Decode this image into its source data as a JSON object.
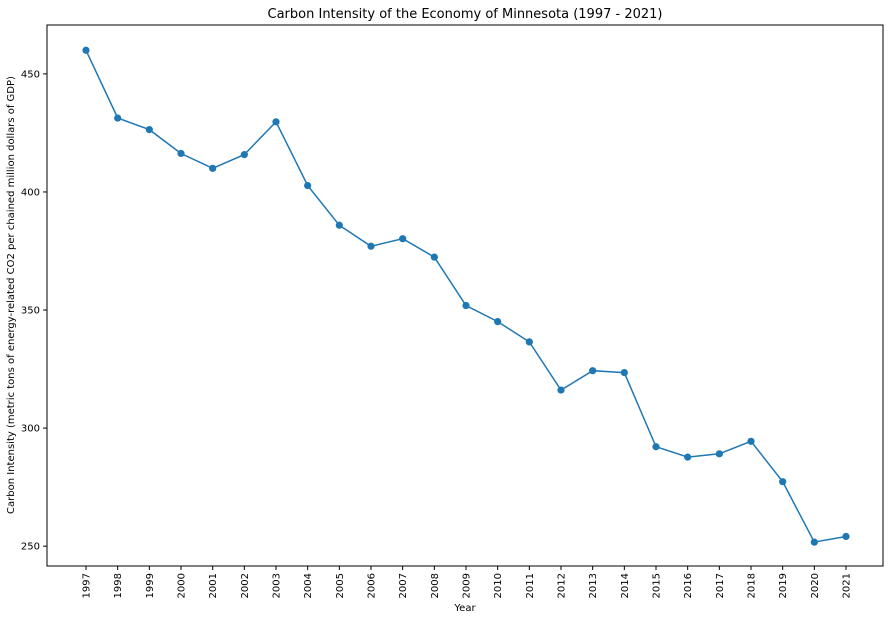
{
  "chart_data": {
    "type": "line",
    "title": "Carbon Intensity of the Economy of Minnesota (1997 - 2021)",
    "xlabel": "Year",
    "ylabel": "Carbon Intensity (metric tons of energy-related CO2 per chained million dollars of GDP)",
    "x": [
      "1997",
      "1998",
      "1999",
      "2000",
      "2001",
      "2002",
      "2003",
      "2004",
      "2005",
      "2006",
      "2007",
      "2008",
      "2009",
      "2010",
      "2011",
      "2012",
      "2013",
      "2014",
      "2015",
      "2016",
      "2017",
      "2018",
      "2019",
      "2020",
      "2021"
    ],
    "series": [
      {
        "values": [
          460,
          431.3,
          426.4,
          416.3,
          410,
          415.8,
          429.7,
          402.7,
          385.9,
          377,
          380.2,
          372.4,
          351.9,
          345.1,
          336.5,
          316.1,
          324.3,
          323.5,
          292.1,
          287.7,
          289.1,
          294.4,
          277.3,
          251.7,
          254.1
        ],
        "color": "#1f77b4"
      }
    ],
    "yticks": [
      250,
      300,
      350,
      400,
      450
    ],
    "ylim": [
      241.6,
      470.7
    ],
    "grid": false,
    "legend": false
  }
}
